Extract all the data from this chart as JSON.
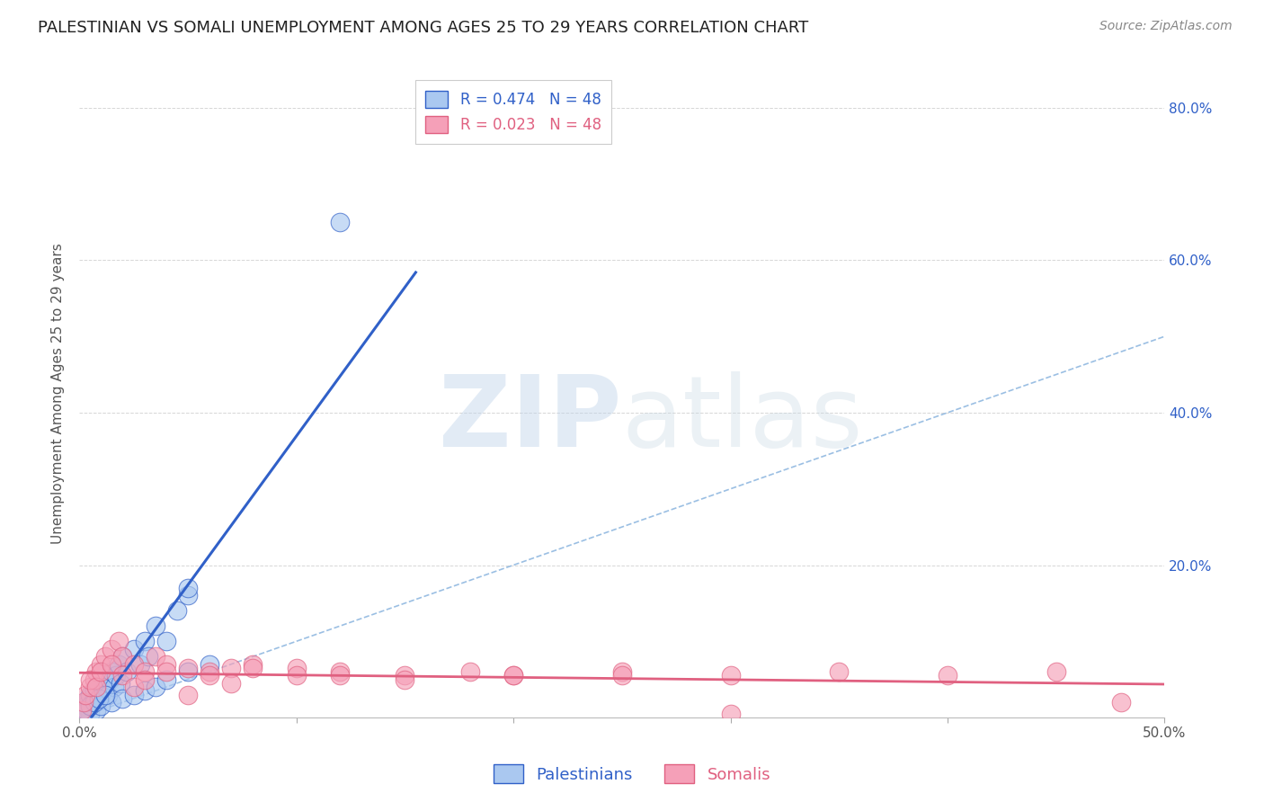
{
  "title": "PALESTINIAN VS SOMALI UNEMPLOYMENT AMONG AGES 25 TO 29 YEARS CORRELATION CHART",
  "source": "Source: ZipAtlas.com",
  "ylabel": "Unemployment Among Ages 25 to 29 years",
  "xlim": [
    0.0,
    0.5
  ],
  "ylim": [
    0.0,
    0.85
  ],
  "blue_R": 0.474,
  "blue_N": 48,
  "pink_R": 0.023,
  "pink_N": 48,
  "blue_color": "#aac8f0",
  "pink_color": "#f5a0b8",
  "blue_line_color": "#3060c8",
  "pink_line_color": "#e06080",
  "diag_line_color": "#90b8e0",
  "background_color": "#ffffff",
  "grid_color": "#cccccc",
  "legend_blue_label": "Palestinians",
  "legend_pink_label": "Somalis",
  "title_fontsize": 13,
  "axis_label_fontsize": 11,
  "tick_fontsize": 11,
  "legend_fontsize": 12,
  "source_fontsize": 10,
  "blue_points_x": [
    0.001,
    0.002,
    0.003,
    0.004,
    0.005,
    0.006,
    0.007,
    0.008,
    0.009,
    0.01,
    0.011,
    0.012,
    0.013,
    0.014,
    0.015,
    0.016,
    0.017,
    0.018,
    0.019,
    0.02,
    0.022,
    0.025,
    0.028,
    0.03,
    0.032,
    0.035,
    0.04,
    0.045,
    0.05,
    0.005,
    0.008,
    0.01,
    0.015,
    0.02,
    0.025,
    0.03,
    0.035,
    0.04,
    0.05,
    0.06,
    0.001,
    0.003,
    0.005,
    0.007,
    0.009,
    0.012,
    0.05,
    0.12
  ],
  "blue_points_y": [
    0.01,
    0.02,
    0.015,
    0.025,
    0.03,
    0.02,
    0.035,
    0.04,
    0.025,
    0.03,
    0.035,
    0.04,
    0.03,
    0.05,
    0.06,
    0.04,
    0.055,
    0.07,
    0.045,
    0.08,
    0.06,
    0.09,
    0.07,
    0.1,
    0.08,
    0.12,
    0.1,
    0.14,
    0.16,
    0.005,
    0.01,
    0.015,
    0.02,
    0.025,
    0.03,
    0.035,
    0.04,
    0.05,
    0.06,
    0.07,
    0.005,
    0.01,
    0.015,
    0.02,
    0.025,
    0.03,
    0.17,
    0.65
  ],
  "pink_points_x": [
    0.001,
    0.002,
    0.003,
    0.005,
    0.007,
    0.008,
    0.01,
    0.012,
    0.015,
    0.018,
    0.02,
    0.025,
    0.03,
    0.035,
    0.04,
    0.05,
    0.06,
    0.07,
    0.08,
    0.1,
    0.12,
    0.15,
    0.18,
    0.2,
    0.25,
    0.3,
    0.35,
    0.4,
    0.45,
    0.005,
    0.008,
    0.01,
    0.015,
    0.02,
    0.025,
    0.03,
    0.04,
    0.05,
    0.06,
    0.07,
    0.08,
    0.1,
    0.12,
    0.15,
    0.2,
    0.25,
    0.3,
    0.48
  ],
  "pink_points_y": [
    0.01,
    0.02,
    0.03,
    0.04,
    0.05,
    0.06,
    0.07,
    0.08,
    0.09,
    0.1,
    0.08,
    0.07,
    0.06,
    0.08,
    0.07,
    0.065,
    0.06,
    0.065,
    0.07,
    0.065,
    0.06,
    0.055,
    0.06,
    0.055,
    0.06,
    0.055,
    0.06,
    0.055,
    0.06,
    0.05,
    0.04,
    0.06,
    0.07,
    0.055,
    0.04,
    0.05,
    0.06,
    0.03,
    0.055,
    0.045,
    0.065,
    0.055,
    0.055,
    0.05,
    0.055,
    0.055,
    0.005,
    0.02
  ]
}
